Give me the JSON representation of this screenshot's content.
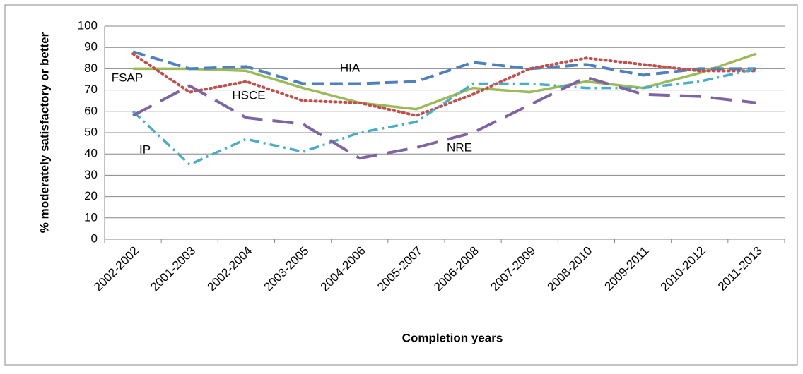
{
  "chart_data": {
    "type": "line",
    "x_label": "Completion years",
    "y_label": "% moderately satisfactory or better",
    "categories": [
      "2002-2002",
      "2001-2003",
      "2002-2004",
      "2003-2005",
      "2004-2006",
      "2005-2007",
      "2006-2008",
      "2007-2009",
      "2008-2010",
      "2009-2011",
      "2010-2012",
      "2011-2013"
    ],
    "series": [
      {
        "name": "FSAP",
        "color": "#9bbb59",
        "values": [
          80,
          80,
          79,
          71,
          64,
          61,
          71,
          69,
          74,
          71,
          78,
          87
        ]
      },
      {
        "name": "HIA",
        "color": "#4f81bd",
        "values": [
          88,
          80,
          81,
          73,
          73,
          74,
          83,
          80,
          82,
          77,
          80,
          80
        ]
      },
      {
        "name": "HSCE",
        "color": "#c0504d",
        "values": [
          87,
          69,
          74,
          65,
          64,
          58,
          68,
          80,
          85,
          82,
          79,
          79
        ]
      },
      {
        "name": "IP",
        "color": "#4bacc6",
        "values": [
          60,
          35,
          47,
          41,
          50,
          55,
          73,
          73,
          71,
          71,
          74,
          80
        ]
      },
      {
        "name": "NRE",
        "color": "#8064a2",
        "values": [
          58,
          72,
          57,
          54,
          38,
          43,
          50,
          63,
          76,
          68,
          67,
          64
        ]
      }
    ],
    "ylim": [
      0,
      100
    ],
    "yticks": [
      0,
      10,
      20,
      30,
      40,
      50,
      60,
      70,
      80,
      90,
      100
    ],
    "grid": true
  }
}
